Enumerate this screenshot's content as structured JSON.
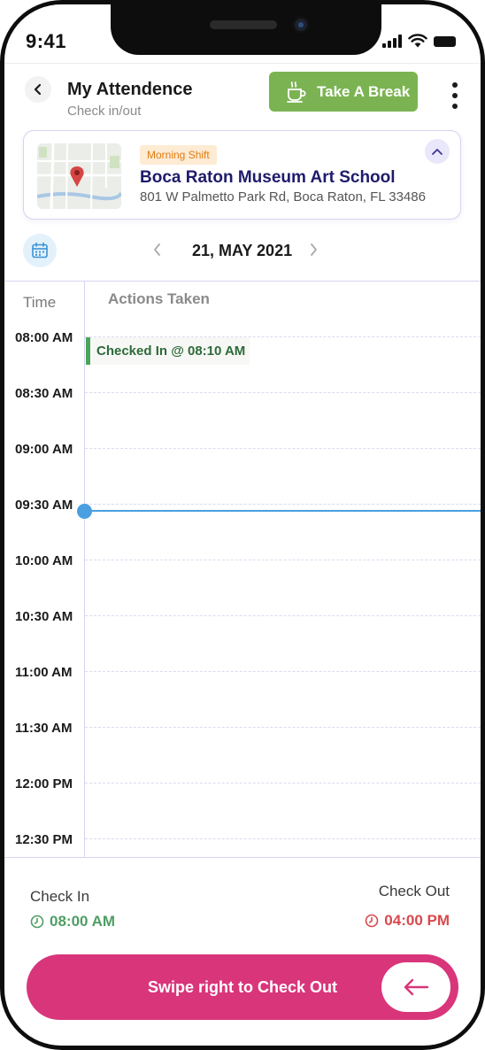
{
  "status_bar": {
    "time": "9:41"
  },
  "header": {
    "title": "My Attendence",
    "subtitle": "Check in/out",
    "break_button_label": "Take A Break"
  },
  "location": {
    "shift_badge": "Morning Shift",
    "name": "Boca Raton Museum Art School",
    "address": "801 W Palmetto Park Rd, Boca Raton, FL 33486"
  },
  "date_nav": {
    "date": "21, MAY 2021"
  },
  "timeline": {
    "time_header": "Time",
    "actions_header": "Actions Taken",
    "slots": [
      "08:00 AM",
      "08:30 AM",
      "09:00 AM",
      "09:30 AM",
      "10:00 AM",
      "10:30 AM",
      "11:00 AM",
      "11:30 AM",
      "12:00 PM",
      "12:30 PM"
    ],
    "events": [
      {
        "label": "Checked In @ 08:10 AM"
      }
    ]
  },
  "summary": {
    "check_in_label": "Check In",
    "check_in_time": "08:00 AM",
    "check_out_label": "Check Out",
    "check_out_time": "04:00 PM"
  },
  "swipe": {
    "label": "Swipe right to Check Out"
  },
  "colors": {
    "brand_green": "#7bb352",
    "brand_pink": "#d9357a",
    "check_in_green": "#4e9e63",
    "check_out_red": "#d9494d",
    "now_indicator_blue": "#4a9fe0",
    "location_title_navy": "#1e1b6b"
  },
  "icons": {
    "back": "chevron-left-icon",
    "break": "coffee-cup-icon",
    "more": "kebab-menu-icon",
    "map": "map-pin-icon",
    "collapse": "chevron-up-icon",
    "calendar": "calendar-icon",
    "clock": "clock-icon",
    "swipe": "arrow-left-icon"
  }
}
